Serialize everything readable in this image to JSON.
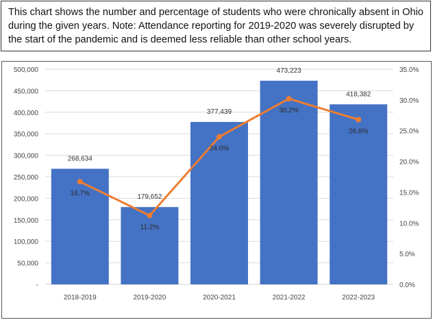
{
  "caption": "This chart shows the number and percentage of students who were chronically absent in Ohio during the given years. Note: Attendance reporting for 2019-2020 was severely disrupted by the start of the pandemic and is deemed less reliable than other school years.",
  "chart_data": {
    "type": "bar",
    "title": "",
    "categories": [
      "2018-2019",
      "2019-2020",
      "2020-2021",
      "2021-2022",
      "2022-2023"
    ],
    "series": [
      {
        "name": "Number chronically absent",
        "type": "bar",
        "axis": "left",
        "values": [
          268634,
          179652,
          377439,
          473223,
          418382
        ],
        "labels": [
          "268,634",
          "179,652",
          "377,439",
          "473,223",
          "418,382"
        ],
        "color": "#4472c4"
      },
      {
        "name": "Percent chronically absent",
        "type": "line",
        "axis": "right",
        "values": [
          16.7,
          11.2,
          24.0,
          30.2,
          26.8
        ],
        "labels": [
          "16.7%",
          "11.2%",
          "24.0%",
          "30.2%",
          "26.8%"
        ],
        "color": "#ed7d31"
      }
    ],
    "y_left": {
      "ylim": [
        0,
        500000
      ],
      "ticks": [
        0,
        50000,
        100000,
        150000,
        200000,
        250000,
        300000,
        350000,
        400000,
        450000,
        500000
      ],
      "tick_labels": [
        "-",
        "50,000",
        "100,000",
        "150,000",
        "200,000",
        "250,000",
        "300,000",
        "350,000",
        "400,000",
        "450,000",
        "500,000"
      ]
    },
    "y_right": {
      "ylim": [
        0,
        35
      ],
      "ticks": [
        0,
        5,
        10,
        15,
        20,
        25,
        30,
        35
      ],
      "tick_labels": [
        "0.0%",
        "5.0%",
        "10.0%",
        "15.0%",
        "20.0%",
        "25.0%",
        "30.0%",
        "35.0%"
      ]
    },
    "grid": true,
    "legend": "none"
  }
}
